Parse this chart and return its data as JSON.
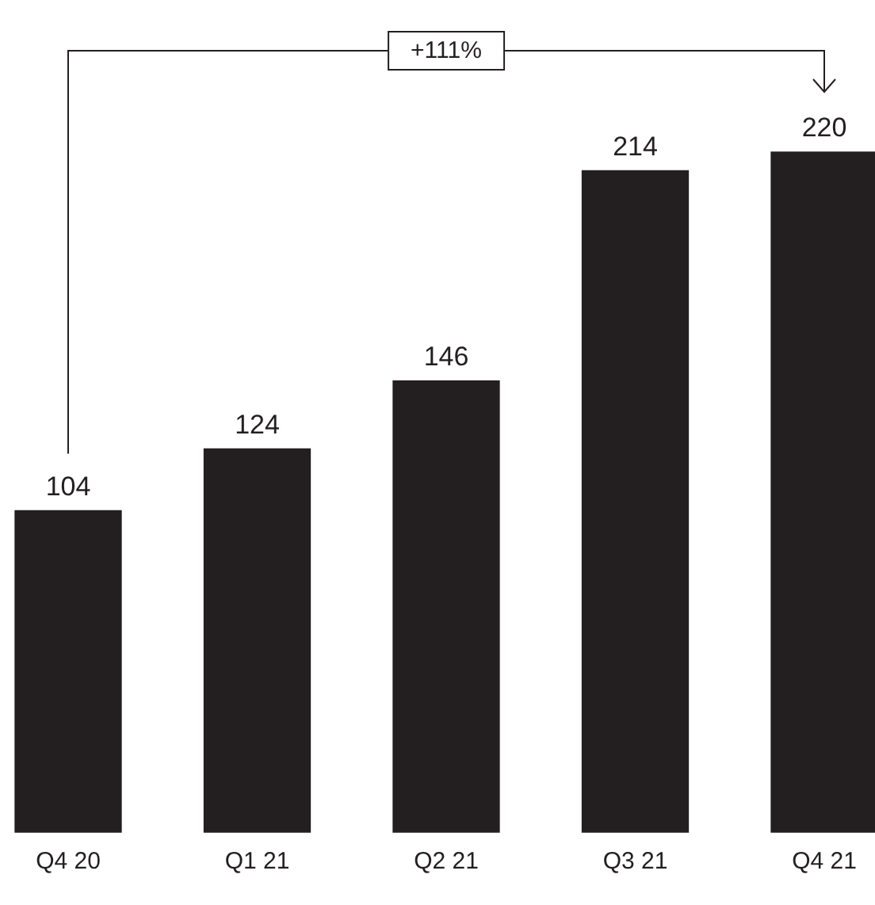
{
  "chart_data": {
    "type": "bar",
    "categories": [
      "Q4 20",
      "Q1 21",
      "Q2 21",
      "Q3 21",
      "Q4 21"
    ],
    "values": [
      104,
      124,
      146,
      214,
      220
    ],
    "color": "#231f20",
    "data_labels": true,
    "grid": false,
    "legend": false,
    "annotations": [
      "+111%"
    ]
  }
}
